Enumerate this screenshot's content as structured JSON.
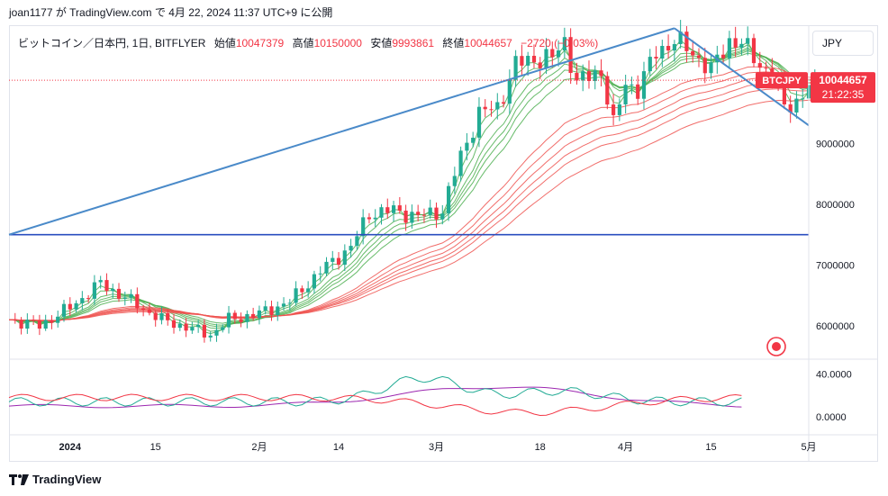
{
  "header": {
    "publish_line": "joan1177 が TradingView.com で 4月 22, 2024 11:37 UTC+9 に公開"
  },
  "legend": {
    "symbol": "ビットコイン／日本円, 1日, BITFLYER",
    "open_label": "始値",
    "open_value": "10047379",
    "high_label": "高値",
    "high_value": "10150000",
    "low_label": "安値",
    "low_value": "9993861",
    "close_label": "終値",
    "close_value": "10044657",
    "change": "−2720 (−0.03%)"
  },
  "currency_button": "JPY",
  "price_tag": {
    "symbol": "BTCJPY",
    "price": "10044657",
    "countdown": "21:22:35"
  },
  "y_axis_ticks": [
    "9000000",
    "8000000",
    "7000000",
    "6000000"
  ],
  "osc_axis_ticks": [
    "40.0000",
    "0.0000"
  ],
  "x_axis_ticks": [
    "2024",
    "15",
    "2月",
    "14",
    "3月",
    "18",
    "4月",
    "15",
    "5月"
  ],
  "footer": {
    "brand": "TradingView"
  },
  "colors": {
    "up": "#22ab94",
    "down": "#f23645",
    "trendline": "#4a8ac9",
    "hline": "#2a4ebf",
    "ribbon_short": "#4caf50",
    "ribbon_long": "#ef5350",
    "osc_purple": "#9c27b0"
  },
  "chart_data": {
    "type": "candlestick",
    "symbol": "BTCJPY",
    "interval": "1D",
    "x_range": [
      "2023-12-22",
      "2024-05-01"
    ],
    "ylim": [
      5450000,
      10950000
    ],
    "horizontal_line": 7500000,
    "trendlines": [
      {
        "from": [
          "2023-12-22",
          7500000
        ],
        "to": [
          "2024-04-09",
          10900000
        ]
      },
      {
        "from": [
          "2024-04-09",
          10900000
        ],
        "to": [
          "2024-05-01",
          9300000
        ]
      }
    ],
    "last_close": 10044657,
    "oscillator": {
      "ylim": [
        -15,
        52
      ]
    }
  }
}
